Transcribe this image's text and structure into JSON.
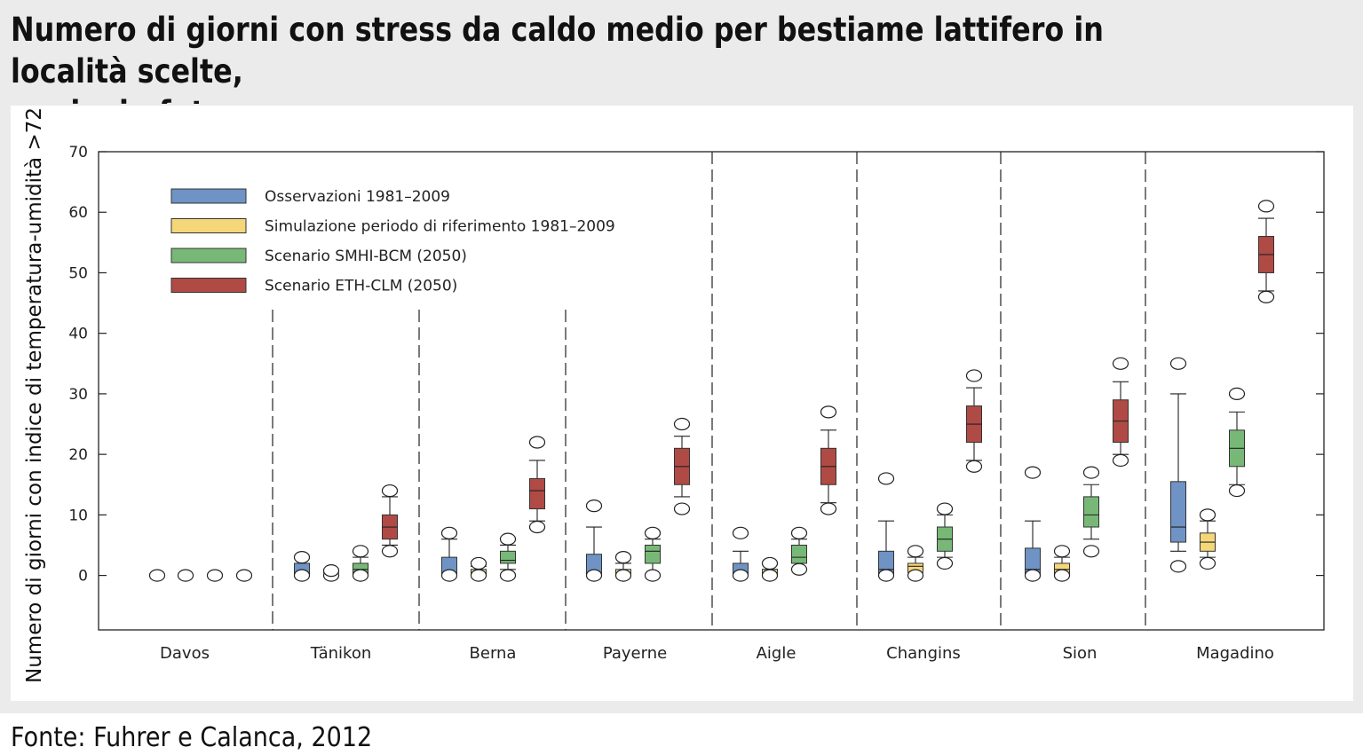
{
  "title": "Numero di giorni con stress da caldo medio per bestiame lattifero in località scelte, oggi e in futuro",
  "title_line1": "Numero di giorni con stress da caldo medio per bestiame lattifero in località scelte,",
  "title_line2": "oggi e in futuro",
  "source": "Fonte: Fuhrer e Calanca, 2012",
  "chart_data": {
    "type": "boxplot",
    "title": "Numero di giorni con stress da caldo medio per bestiame lattifero in località scelte, oggi e in futuro",
    "xlabel": "",
    "ylabel": "Numero di giorni con indice di temperatura-umidità >72",
    "ylim": [
      -9,
      70
    ],
    "yticks": [
      0,
      10,
      20,
      30,
      40,
      50,
      60,
      70
    ],
    "tick_labels": [
      "0",
      "10",
      "20",
      "30",
      "40",
      "50",
      "60",
      "70"
    ],
    "legend_position": "top-left",
    "categories": [
      "Davos",
      "Tänikon",
      "Berna",
      "Payerne",
      "Aigle",
      "Changins",
      "Sion",
      "Magadino"
    ],
    "series": [
      {
        "name": "Osservazioni 1981–2009",
        "color": "#6e93c4",
        "boxes": [
          {
            "q1": 0,
            "median": 0,
            "q3": 0,
            "whisker_low": 0,
            "whisker_high": 0,
            "outliers": [
              0
            ]
          },
          {
            "q1": 0,
            "median": 0,
            "q3": 2,
            "whisker_low": 0,
            "whisker_high": 3,
            "outliers": [
              0,
              3
            ]
          },
          {
            "q1": 0,
            "median": 0,
            "q3": 3,
            "whisker_low": 0,
            "whisker_high": 6,
            "outliers": [
              0,
              7
            ]
          },
          {
            "q1": 0,
            "median": 0,
            "q3": 3.5,
            "whisker_low": 0,
            "whisker_high": 8,
            "outliers": [
              0,
              11.5
            ]
          },
          {
            "q1": 0,
            "median": 0,
            "q3": 2,
            "whisker_low": 0,
            "whisker_high": 4,
            "outliers": [
              0,
              7
            ]
          },
          {
            "q1": 0,
            "median": 1,
            "q3": 4,
            "whisker_low": 0,
            "whisker_high": 9,
            "outliers": [
              0,
              16
            ]
          },
          {
            "q1": 0,
            "median": 1,
            "q3": 4.5,
            "whisker_low": 0,
            "whisker_high": 9,
            "outliers": [
              0,
              17
            ]
          },
          {
            "q1": 5.5,
            "median": 8,
            "q3": 15.5,
            "whisker_low": 4,
            "whisker_high": 30,
            "outliers": [
              1.5,
              35
            ]
          }
        ]
      },
      {
        "name": "Simulazione periodo di riferimento 1981–2009",
        "color": "#f5d77a",
        "boxes": [
          {
            "q1": 0,
            "median": 0,
            "q3": 0,
            "whisker_low": 0,
            "whisker_high": 0,
            "outliers": [
              0
            ]
          },
          {
            "q1": 0,
            "median": 0,
            "q3": 0,
            "whisker_low": 0,
            "whisker_high": 0.5,
            "outliers": [
              0,
              0.8
            ]
          },
          {
            "q1": 0,
            "median": 0,
            "q3": 1,
            "whisker_low": 0,
            "whisker_high": 1.5,
            "outliers": [
              0,
              2
            ]
          },
          {
            "q1": 0,
            "median": 0,
            "q3": 1,
            "whisker_low": 0,
            "whisker_high": 2,
            "outliers": [
              0,
              3
            ]
          },
          {
            "q1": 0,
            "median": 0,
            "q3": 1,
            "whisker_low": 0,
            "whisker_high": 1,
            "outliers": [
              0,
              2
            ]
          },
          {
            "q1": 0.5,
            "median": 1.5,
            "q3": 2,
            "whisker_low": 0,
            "whisker_high": 3,
            "outliers": [
              0,
              4
            ]
          },
          {
            "q1": 0,
            "median": 1,
            "q3": 2,
            "whisker_low": 0,
            "whisker_high": 3,
            "outliers": [
              0,
              4
            ]
          },
          {
            "q1": 4,
            "median": 5.5,
            "q3": 7,
            "whisker_low": 3,
            "whisker_high": 9,
            "outliers": [
              2,
              10
            ]
          }
        ]
      },
      {
        "name": "Scenario SMHI-BCM (2050)",
        "color": "#78b877",
        "boxes": [
          {
            "q1": 0,
            "median": 0,
            "q3": 0,
            "whisker_low": 0,
            "whisker_high": 0,
            "outliers": [
              0
            ]
          },
          {
            "q1": 0,
            "median": 1,
            "q3": 2,
            "whisker_low": 0,
            "whisker_high": 3,
            "outliers": [
              0,
              4
            ]
          },
          {
            "q1": 2,
            "median": 2.5,
            "q3": 4,
            "whisker_low": 1,
            "whisker_high": 5,
            "outliers": [
              0,
              6
            ]
          },
          {
            "q1": 2,
            "median": 4,
            "q3": 5,
            "whisker_low": 0,
            "whisker_high": 6,
            "outliers": [
              0,
              7
            ]
          },
          {
            "q1": 2,
            "median": 3,
            "q3": 5,
            "whisker_low": 1,
            "whisker_high": 6,
            "outliers": [
              1,
              7
            ]
          },
          {
            "q1": 4,
            "median": 6,
            "q3": 8,
            "whisker_low": 3,
            "whisker_high": 10,
            "outliers": [
              2,
              11
            ]
          },
          {
            "q1": 8,
            "median": 10,
            "q3": 13,
            "whisker_low": 6,
            "whisker_high": 15,
            "outliers": [
              4,
              17
            ]
          },
          {
            "q1": 18,
            "median": 21,
            "q3": 24,
            "whisker_low": 15,
            "whisker_high": 27,
            "outliers": [
              14,
              30
            ]
          }
        ]
      },
      {
        "name": "Scenario ETH-CLM (2050)",
        "color": "#b04a45",
        "boxes": [
          {
            "q1": 0,
            "median": 0,
            "q3": 0,
            "whisker_low": 0,
            "whisker_high": 0,
            "outliers": [
              0
            ]
          },
          {
            "q1": 6,
            "median": 8,
            "q3": 10,
            "whisker_low": 5,
            "whisker_high": 13,
            "outliers": [
              4,
              14
            ]
          },
          {
            "q1": 11,
            "median": 14,
            "q3": 16,
            "whisker_low": 9,
            "whisker_high": 19,
            "outliers": [
              8,
              22
            ]
          },
          {
            "q1": 15,
            "median": 18,
            "q3": 21,
            "whisker_low": 13,
            "whisker_high": 23,
            "outliers": [
              11,
              25
            ]
          },
          {
            "q1": 15,
            "median": 18,
            "q3": 21,
            "whisker_low": 12,
            "whisker_high": 24,
            "outliers": [
              11,
              27
            ]
          },
          {
            "q1": 22,
            "median": 25,
            "q3": 28,
            "whisker_low": 19,
            "whisker_high": 31,
            "outliers": [
              18,
              33
            ]
          },
          {
            "q1": 22,
            "median": 25.5,
            "q3": 29,
            "whisker_low": 20,
            "whisker_high": 32,
            "outliers": [
              19,
              35
            ]
          },
          {
            "q1": 50,
            "median": 53,
            "q3": 56,
            "whisker_low": 47,
            "whisker_high": 59,
            "outliers": [
              46,
              61
            ]
          }
        ]
      }
    ]
  }
}
